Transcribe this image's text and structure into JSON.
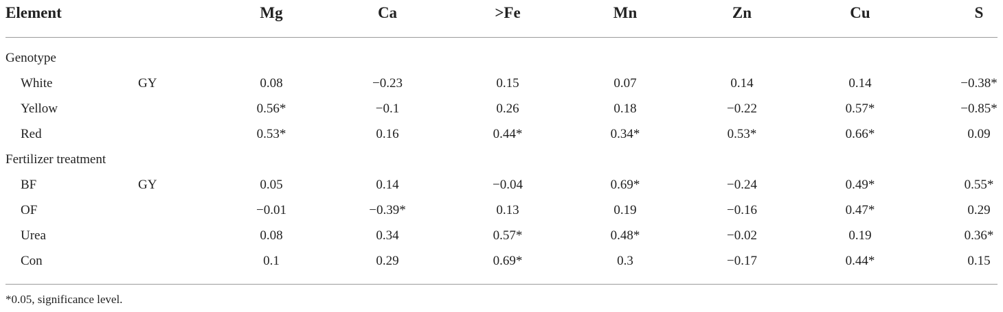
{
  "table": {
    "header": {
      "row_label": "Element",
      "columns": [
        "Mg",
        "Ca",
        ">Fe",
        "Mn",
        "Zn",
        "Cu",
        "S"
      ]
    },
    "sections": [
      {
        "title": "Genotype",
        "rows": [
          {
            "label": "White",
            "trait": "GY",
            "values": [
              "0.08",
              "−0.23",
              "0.15",
              "0.07",
              "0.14",
              "0.14",
              "−0.38*"
            ]
          },
          {
            "label": "Yellow",
            "trait": "",
            "values": [
              "0.56*",
              "−0.1",
              "0.26",
              "0.18",
              "−0.22",
              "0.57*",
              "−0.85*"
            ]
          },
          {
            "label": "Red",
            "trait": "",
            "values": [
              "0.53*",
              "0.16",
              "0.44*",
              "0.34*",
              "0.53*",
              "0.66*",
              "0.09"
            ]
          }
        ]
      },
      {
        "title": "Fertilizer treatment",
        "rows": [
          {
            "label": "BF",
            "trait": "GY",
            "values": [
              "0.05",
              "0.14",
              "−0.04",
              "0.69*",
              "−0.24",
              "0.49*",
              "0.55*"
            ]
          },
          {
            "label": "OF",
            "trait": "",
            "values": [
              "−0.01",
              "−0.39*",
              "0.13",
              "0.19",
              "−0.16",
              "0.47*",
              "0.29"
            ]
          },
          {
            "label": "Urea",
            "trait": "",
            "values": [
              "0.08",
              "0.34",
              "0.57*",
              "0.48*",
              "−0.02",
              "0.19",
              "0.36*"
            ]
          },
          {
            "label": "Con",
            "trait": "",
            "values": [
              "0.1",
              "0.29",
              "0.69*",
              "0.3",
              "−0.17",
              "0.44*",
              "0.15"
            ]
          }
        ]
      }
    ],
    "footnote": "*0.05, significance level."
  }
}
